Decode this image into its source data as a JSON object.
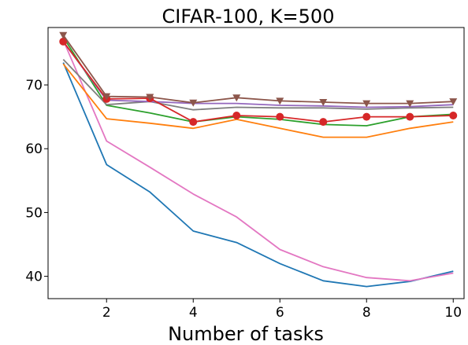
{
  "chart_data": {
    "type": "line",
    "title": "CIFAR-100, K=500",
    "xlabel": "Number of tasks",
    "ylabel": "",
    "xlim": [
      0.65,
      10.25
    ],
    "ylim": [
      36.5,
      79.0
    ],
    "xticks": [
      2,
      4,
      6,
      8,
      10
    ],
    "yticks": [
      40,
      50,
      60,
      70
    ],
    "grid": false,
    "x": [
      1,
      2,
      3,
      4,
      5,
      6,
      7,
      8,
      9,
      10
    ],
    "series": [
      {
        "color": "#1f77b4",
        "marker": "none",
        "values": [
          73.5,
          57.5,
          53.2,
          47.1,
          45.3,
          42.0,
          39.3,
          38.4,
          39.2,
          40.8
        ]
      },
      {
        "color": "#e377c2",
        "marker": "none",
        "values": [
          77.0,
          61.2,
          57.1,
          52.9,
          49.3,
          44.2,
          41.5,
          39.8,
          39.3,
          40.5
        ]
      },
      {
        "color": "#ff7f0e",
        "marker": "none",
        "values": [
          73.3,
          64.7,
          64.0,
          63.2,
          64.6,
          63.2,
          61.8,
          61.8,
          63.2,
          64.2
        ]
      },
      {
        "color": "#2ca02c",
        "marker": "none",
        "values": [
          77.5,
          66.8,
          65.6,
          64.2,
          65.0,
          64.6,
          63.8,
          63.6,
          65.0,
          65.4
        ]
      },
      {
        "color": "#7f7f7f",
        "marker": "none",
        "values": [
          74.0,
          66.9,
          67.4,
          66.1,
          66.5,
          66.4,
          66.4,
          66.2,
          66.4,
          66.5
        ]
      },
      {
        "color": "#9467bd",
        "marker": "none",
        "values": [
          76.8,
          67.6,
          67.4,
          67.1,
          67.1,
          66.8,
          66.7,
          66.5,
          66.6,
          66.9
        ]
      },
      {
        "color": "#d62728",
        "marker": "circle",
        "values": [
          76.8,
          67.8,
          67.9,
          64.2,
          65.2,
          65.0,
          64.2,
          65.0,
          65.0,
          65.2
        ]
      },
      {
        "color": "#8c564b",
        "marker": "triangle-down",
        "values": [
          77.8,
          68.2,
          68.1,
          67.2,
          68.0,
          67.5,
          67.3,
          67.1,
          67.1,
          67.4
        ]
      }
    ]
  }
}
